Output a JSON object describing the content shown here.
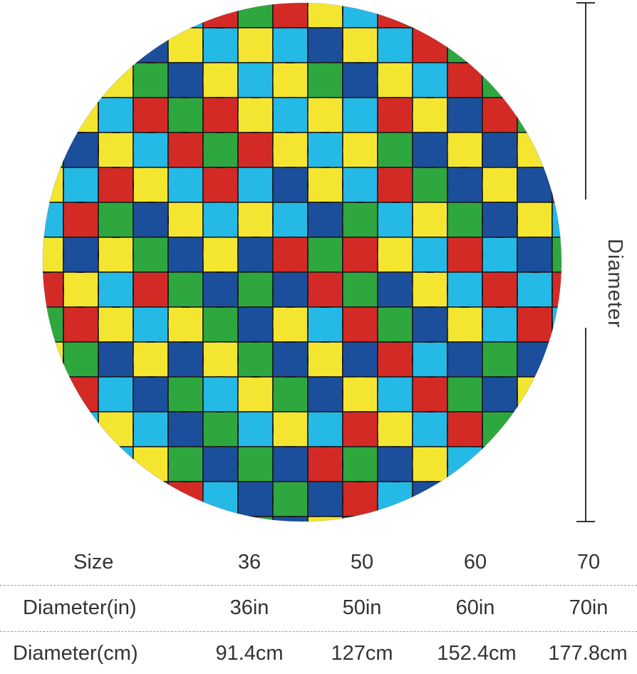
{
  "product": {
    "shape": "round rug",
    "pattern": "jigsaw puzzle pieces",
    "palette": {
      "red": "#d42a26",
      "yellow": "#f4e630",
      "green": "#2fa73f",
      "light_blue": "#25b9e6",
      "dark_blue": "#1b4f9c",
      "outline": "#1a1a1a"
    }
  },
  "dimension_marker": {
    "label": "Diameter"
  },
  "size_table": {
    "rows": [
      {
        "label": "Size",
        "values": [
          "36",
          "50",
          "60",
          "70"
        ]
      },
      {
        "label": "Diameter(in)",
        "values": [
          "36in",
          "50in",
          "60in",
          "70in"
        ]
      },
      {
        "label": "Diameter(cm)",
        "values": [
          "91.4cm",
          "127cm",
          "152.4cm",
          "177.8cm"
        ]
      }
    ]
  }
}
